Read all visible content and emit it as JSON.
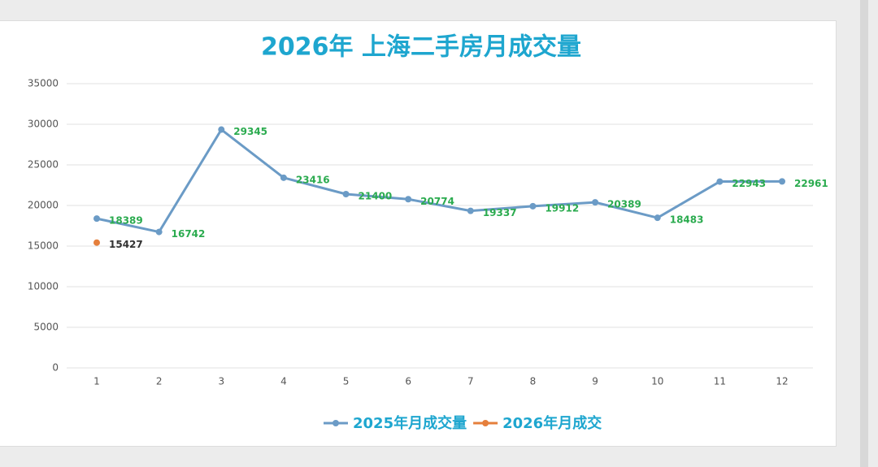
{
  "chart_data": {
    "type": "line",
    "title": "2026年 上海二手房月成交量",
    "categories": [
      "1",
      "2",
      "3",
      "4",
      "5",
      "6",
      "7",
      "8",
      "9",
      "10",
      "11",
      "12"
    ],
    "series": [
      {
        "name": "2025年月成交量",
        "color": "#6b9bc6",
        "label_color": "#2bab4f",
        "values": [
          18389,
          16742,
          29345,
          23416,
          21400,
          20774,
          19337,
          19912,
          20389,
          18483,
          22943,
          22961
        ]
      },
      {
        "name": "2026年月成交",
        "color": "#e57f3c",
        "label_color": "#333333",
        "values": [
          15427,
          null,
          null,
          null,
          null,
          null,
          null,
          null,
          null,
          null,
          null,
          null
        ]
      }
    ],
    "ylim": [
      0,
      35000
    ],
    "yticks": [
      0,
      5000,
      10000,
      15000,
      20000,
      25000,
      30000,
      35000
    ],
    "grid": true,
    "legend": "bottom"
  }
}
